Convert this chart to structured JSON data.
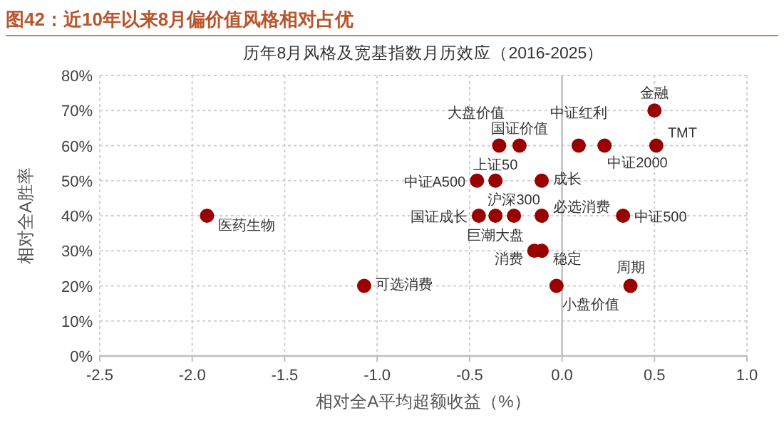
{
  "chart_data": {
    "type": "scatter",
    "title": "图42：近10年以来8月偏价值风格相对占优",
    "subtitle": "历年8月风格及宽基指数月历效应（2016-2025）",
    "xlabel": "相对全A平均超额收益（%）",
    "ylabel": "相对全A胜率",
    "x": [
      0.5,
      0.51,
      0.09,
      0.23,
      -0.34,
      -0.23,
      -0.46,
      -0.36,
      -0.11,
      -0.45,
      -0.36,
      -0.26,
      -0.11,
      0.33,
      -0.15,
      -0.11,
      -1.92,
      -1.07,
      -0.03,
      0.37
    ],
    "series": [
      {
        "color": "#990000",
        "values": [
          70,
          60,
          60,
          60,
          60,
          60,
          50,
          50,
          50,
          40,
          40,
          40,
          40,
          40,
          30,
          30,
          40,
          20,
          20,
          20
        ]
      }
    ],
    "xlim": [
      -2.5,
      1.0
    ],
    "xticks": [
      {
        "value": -2.5,
        "label": "-2.5"
      },
      {
        "value": -2,
        "label": "-2.0"
      },
      {
        "value": -1.5,
        "label": "-1.5"
      },
      {
        "value": -1,
        "label": "-1.0"
      },
      {
        "value": -0.5,
        "label": "-0.5"
      },
      {
        "value": 0,
        "label": "0.0"
      },
      {
        "value": 0.5,
        "label": "0.5"
      },
      {
        "value": 1,
        "label": "1.0"
      }
    ],
    "ylim": [
      0,
      80
    ],
    "yticks": [
      {
        "value": 0,
        "label": "0%"
      },
      {
        "value": 10,
        "label": "10%"
      },
      {
        "value": 20,
        "label": "20%"
      },
      {
        "value": 30,
        "label": "30%"
      },
      {
        "value": 40,
        "label": "40%"
      },
      {
        "value": 50,
        "label": "50%"
      },
      {
        "value": 60,
        "label": "60%"
      },
      {
        "value": 70,
        "label": "70%"
      },
      {
        "value": 80,
        "label": "80%"
      }
    ],
    "grid": true,
    "marker": "circle",
    "ref_lines": [
      {
        "axis": "x",
        "value": 0,
        "color": "#bfbfbf"
      }
    ],
    "annotations": [
      {
        "text": "金融",
        "x": 0.5,
        "y": 70
      },
      {
        "text": "TMT",
        "x": 0.51,
        "y": 60
      },
      {
        "text": "中证红利",
        "x": 0.09,
        "y": 60
      },
      {
        "text": "中证2000",
        "x": 0.23,
        "y": 60
      },
      {
        "text": "大盘价值",
        "x": -0.34,
        "y": 60
      },
      {
        "text": "国证价值",
        "x": -0.23,
        "y": 60
      },
      {
        "text": "中证A500",
        "x": -0.46,
        "y": 50
      },
      {
        "text": "上证50",
        "x": -0.36,
        "y": 50
      },
      {
        "text": "成长",
        "x": -0.11,
        "y": 50
      },
      {
        "text": "国证成长",
        "x": -0.45,
        "y": 40
      },
      {
        "text": "巨潮大盘",
        "x": -0.36,
        "y": 40
      },
      {
        "text": "沪深300",
        "x": -0.26,
        "y": 40
      },
      {
        "text": "必选消费",
        "x": -0.11,
        "y": 40
      },
      {
        "text": "中证500",
        "x": 0.33,
        "y": 40
      },
      {
        "text": "消费",
        "x": -0.15,
        "y": 30
      },
      {
        "text": "稳定",
        "x": -0.11,
        "y": 30
      },
      {
        "text": "医药生物",
        "x": -1.92,
        "y": 40
      },
      {
        "text": "可选消费",
        "x": -1.07,
        "y": 20
      },
      {
        "text": "小盘价值",
        "x": -0.03,
        "y": 20
      },
      {
        "text": "周期",
        "x": 0.37,
        "y": 20
      }
    ]
  }
}
